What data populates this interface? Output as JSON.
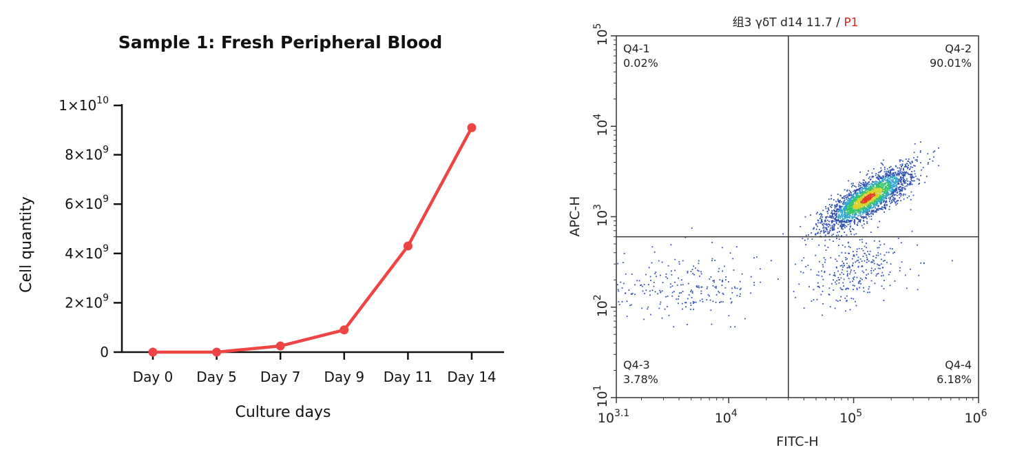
{
  "chart_data": [
    {
      "type": "line",
      "title": "Sample 1: Fresh Peripheral Blood",
      "xlabel": "Culture days",
      "ylabel": "Cell quantity",
      "categories": [
        "Day 0",
        "Day 5",
        "Day 7",
        "Day 9",
        "Day 11",
        "Day 14"
      ],
      "series": [
        {
          "values": [
            0,
            0,
            250000000,
            900000000,
            4300000000,
            9100000000
          ]
        }
      ],
      "ylim": [
        0,
        10000000000
      ],
      "yticks": [
        {
          "value": 0,
          "label": "0",
          "sup": ""
        },
        {
          "value": 2000000000,
          "label": "2×10",
          "sup": "9"
        },
        {
          "value": 4000000000,
          "label": "4×10",
          "sup": "9"
        },
        {
          "value": 6000000000,
          "label": "6×10",
          "sup": "9"
        },
        {
          "value": 8000000000,
          "label": "8×10",
          "sup": "9"
        },
        {
          "value": 10000000000,
          "label": "1×10",
          "sup": "10"
        }
      ],
      "color": "#ef4444",
      "grid": false
    },
    {
      "type": "scatter",
      "title": "组3 γδT d14 11.7",
      "title_separator": " / ",
      "gate": "P1",
      "gate_color": "#e11d1d",
      "xlabel": "FITC-H",
      "ylabel": "APC-H",
      "xscale": "log",
      "yscale": "log",
      "xlim": [
        1258.9,
        1000000
      ],
      "ylim": [
        10,
        100000
      ],
      "xticks": [
        {
          "value": 1258.9,
          "base": "10",
          "exp": "3.1"
        },
        {
          "value": 10000,
          "base": "10",
          "exp": "4"
        },
        {
          "value": 100000,
          "base": "10",
          "exp": "5"
        },
        {
          "value": 1000000,
          "base": "10",
          "exp": "6"
        }
      ],
      "yticks": [
        {
          "value": 10,
          "base": "10",
          "exp": "1"
        },
        {
          "value": 100,
          "base": "10",
          "exp": "2"
        },
        {
          "value": 1000,
          "base": "10",
          "exp": "3"
        },
        {
          "value": 10000,
          "base": "10",
          "exp": "4"
        },
        {
          "value": 100000,
          "base": "10",
          "exp": "5"
        }
      ],
      "gate_x": 30000,
      "gate_y": 600,
      "quadrants": [
        {
          "name": "Q4-1",
          "percent": "0.02%",
          "position": "top-left"
        },
        {
          "name": "Q4-2",
          "percent": "90.01%",
          "position": "top-right"
        },
        {
          "name": "Q4-3",
          "percent": "3.78%",
          "position": "bottom-left"
        },
        {
          "name": "Q4-4",
          "percent": "6.18%",
          "position": "bottom-right"
        }
      ],
      "point_color": "#2f4fb3",
      "density_colors": [
        "#2f4fb3",
        "#2fa6c9",
        "#37c46a",
        "#d7d32a",
        "#e23b23"
      ],
      "populations": [
        {
          "name": "Q4-2 cluster",
          "center": [
            130000,
            1600
          ],
          "spread_log": [
            0.17,
            0.17
          ],
          "correlation": 0.8,
          "count": 2600
        },
        {
          "name": "Q4-3 scatter",
          "center": [
            4000,
            170
          ],
          "spread_log": [
            0.34,
            0.17
          ],
          "correlation": 0.0,
          "count": 260
        },
        {
          "name": "Q4-4 scatter",
          "center": [
            100000,
            250
          ],
          "spread_log": [
            0.2,
            0.2
          ],
          "correlation": 0.3,
          "count": 300
        }
      ]
    }
  ]
}
